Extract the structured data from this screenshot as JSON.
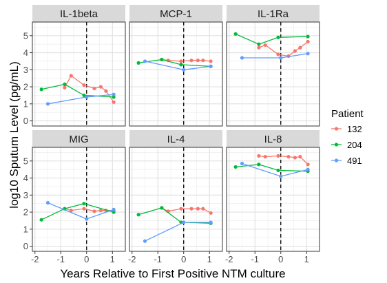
{
  "chart_data": {
    "type": "line",
    "xlabel": "Years Relative to First Positive NTM culture",
    "ylabel": "log10 Sputum Level (pg/mL)",
    "xlim": [
      -2.1,
      1.5
    ],
    "ylim": [
      -0.3,
      5.8
    ],
    "xticks": [
      -2,
      -1,
      0,
      1
    ],
    "xtick_labels": [
      "-2",
      "-1",
      "0",
      "1"
    ],
    "yticks": [
      0,
      1,
      2,
      3,
      4,
      5
    ],
    "ytick_labels": [
      "0",
      "1",
      "2",
      "3",
      "4",
      "5"
    ],
    "vline_x": 0,
    "grid": true,
    "legend": {
      "title": "Patient",
      "position": "right",
      "entries": [
        {
          "label": "132",
          "color": "#F8766D"
        },
        {
          "label": "204",
          "color": "#00BA38"
        },
        {
          "label": "491",
          "color": "#619CFF"
        }
      ]
    },
    "panels": [
      {
        "title": "IL-1beta",
        "series": [
          {
            "patient": "132",
            "x": [
              -0.85,
              -0.6,
              -0.1,
              0.3,
              0.55,
              0.75,
              1.05
            ],
            "y": [
              1.95,
              2.65,
              2.1,
              1.9,
              2.0,
              1.75,
              1.1
            ]
          },
          {
            "patient": "204",
            "x": [
              -1.75,
              -0.85,
              -0.1,
              1.05
            ],
            "y": [
              1.85,
              2.15,
              1.5,
              1.4
            ]
          },
          {
            "patient": "491",
            "x": [
              -1.5,
              0.0,
              1.05
            ],
            "y": [
              1.0,
              1.4,
              1.55
            ]
          }
        ]
      },
      {
        "title": "MCP-1",
        "series": [
          {
            "patient": "132",
            "x": [
              -0.85,
              -0.6,
              -0.1,
              0.3,
              0.55,
              0.75,
              1.05
            ],
            "y": [
              3.6,
              3.55,
              3.5,
              3.55,
              3.55,
              3.55,
              3.5
            ]
          },
          {
            "patient": "204",
            "x": [
              -1.75,
              -0.85,
              -0.1,
              1.05
            ],
            "y": [
              3.4,
              3.6,
              3.3,
              3.2
            ]
          },
          {
            "patient": "491",
            "x": [
              -1.5,
              0.0,
              1.05
            ],
            "y": [
              3.5,
              3.0,
              3.2
            ]
          }
        ]
      },
      {
        "title": "IL-1Ra",
        "series": [
          {
            "patient": "132",
            "x": [
              -0.85,
              -0.6,
              -0.1,
              0.3,
              0.55,
              0.75,
              1.05
            ],
            "y": [
              4.3,
              4.45,
              3.9,
              3.8,
              4.1,
              4.3,
              4.65
            ]
          },
          {
            "patient": "204",
            "x": [
              -1.75,
              -0.85,
              -0.1,
              1.05
            ],
            "y": [
              5.1,
              4.5,
              4.9,
              4.95
            ]
          },
          {
            "patient": "491",
            "x": [
              -1.5,
              0.0,
              1.05
            ],
            "y": [
              3.7,
              3.7,
              3.95
            ]
          }
        ]
      },
      {
        "title": "MIG",
        "series": [
          {
            "patient": "132",
            "x": [
              -0.85,
              -0.6,
              -0.1,
              0.3,
              0.55,
              0.75,
              1.05
            ],
            "y": [
              2.2,
              2.1,
              2.2,
              2.05,
              2.1,
              2.1,
              2.1
            ]
          },
          {
            "patient": "204",
            "x": [
              -1.75,
              -0.85,
              -0.1,
              1.05
            ],
            "y": [
              1.55,
              2.2,
              2.5,
              2.0
            ]
          },
          {
            "patient": "491",
            "x": [
              -1.5,
              0.0,
              1.05
            ],
            "y": [
              2.55,
              1.6,
              2.15
            ]
          }
        ]
      },
      {
        "title": "IL-4",
        "series": [
          {
            "patient": "132",
            "x": [
              -0.85,
              -0.6,
              -0.1,
              0.3,
              0.55,
              0.75,
              1.05
            ],
            "y": [
              2.25,
              2.05,
              2.2,
              2.2,
              2.2,
              2.2,
              1.95
            ]
          },
          {
            "patient": "204",
            "x": [
              -1.75,
              -0.85,
              -0.1,
              1.05
            ],
            "y": [
              1.85,
              2.25,
              1.4,
              1.35
            ]
          },
          {
            "patient": "491",
            "x": [
              -1.5,
              0.0,
              1.05
            ],
            "y": [
              0.3,
              1.4,
              1.4
            ]
          }
        ]
      },
      {
        "title": "IL-8",
        "series": [
          {
            "patient": "132",
            "x": [
              -0.85,
              -0.6,
              -0.1,
              0.3,
              0.55,
              0.75,
              1.05
            ],
            "y": [
              5.3,
              5.25,
              5.3,
              5.25,
              5.2,
              5.25,
              4.8
            ]
          },
          {
            "patient": "204",
            "x": [
              -1.75,
              -0.85,
              -0.1,
              1.05
            ],
            "y": [
              4.65,
              4.8,
              4.45,
              4.4
            ]
          },
          {
            "patient": "491",
            "x": [
              -1.5,
              0.0,
              1.05
            ],
            "y": [
              4.85,
              4.1,
              4.5
            ]
          }
        ]
      }
    ]
  }
}
